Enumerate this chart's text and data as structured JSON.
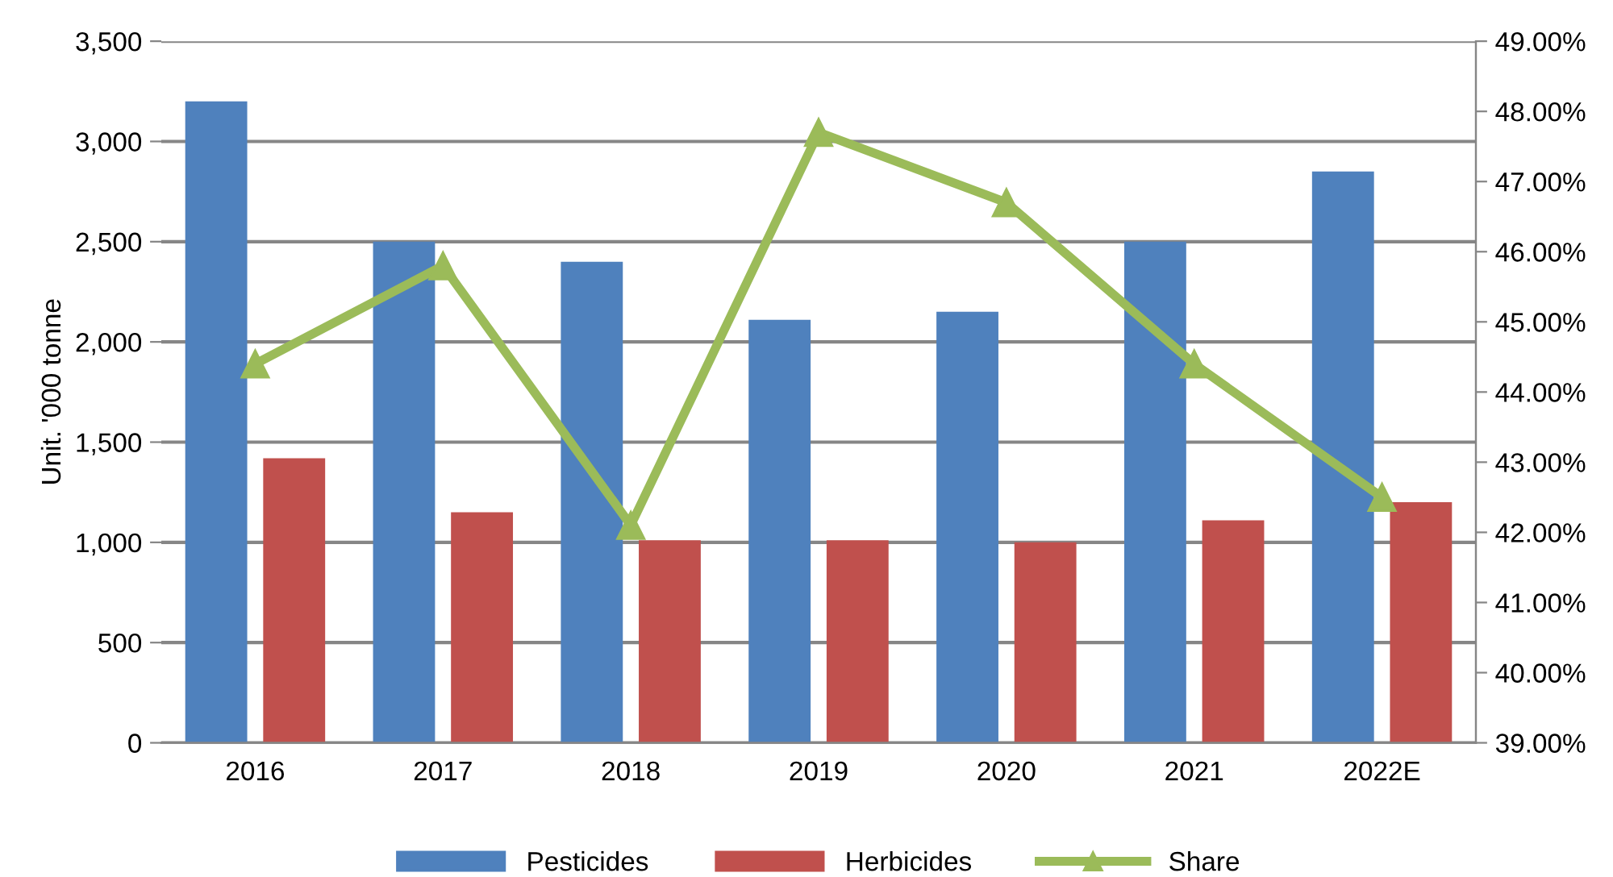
{
  "chart_data": {
    "type": "bar",
    "ylabel": "Unit. '000 tonne",
    "categories": [
      "2016",
      "2017",
      "2018",
      "2019",
      "2020",
      "2021",
      "2022E"
    ],
    "series": [
      {
        "name": "Pesticides",
        "color": "#4f81bd",
        "values": [
          3200,
          2500,
          2400,
          2110,
          2150,
          2500,
          2850
        ]
      },
      {
        "name": "Herbicides",
        "color": "#c0504d",
        "values": [
          1420,
          1150,
          1010,
          1010,
          1000,
          1110,
          1200
        ]
      },
      {
        "name": "Share",
        "type": "line",
        "axis": "y2",
        "color": "#9bbb59",
        "marker": "triangle",
        "values": [
          44.4,
          45.8,
          42.1,
          47.7,
          46.7,
          44.4,
          42.5
        ]
      }
    ],
    "ylim": [
      0,
      3500
    ],
    "yticks": [
      {
        "value": 0,
        "label": "0"
      },
      {
        "value": 500,
        "label": "500"
      },
      {
        "value": 1000,
        "label": "1,000"
      },
      {
        "value": 1500,
        "label": "1,500"
      },
      {
        "value": 2000,
        "label": "2,000"
      },
      {
        "value": 2500,
        "label": "2,500"
      },
      {
        "value": 3000,
        "label": "3,000"
      },
      {
        "value": 3500,
        "label": "3,500"
      }
    ],
    "y2lim": [
      39,
      49
    ],
    "y2ticks": [
      {
        "value": 39,
        "label": "39.00%"
      },
      {
        "value": 40,
        "label": "40.00%"
      },
      {
        "value": 41,
        "label": "41.00%"
      },
      {
        "value": 42,
        "label": "42.00%"
      },
      {
        "value": 43,
        "label": "43.00%"
      },
      {
        "value": 44,
        "label": "44.00%"
      },
      {
        "value": 45,
        "label": "45.00%"
      },
      {
        "value": 46,
        "label": "46.00%"
      },
      {
        "value": 47,
        "label": "47.00%"
      },
      {
        "value": 48,
        "label": "48.00%"
      },
      {
        "value": 49,
        "label": "49.00%"
      }
    ],
    "grid": "y",
    "legend": "bottom"
  }
}
